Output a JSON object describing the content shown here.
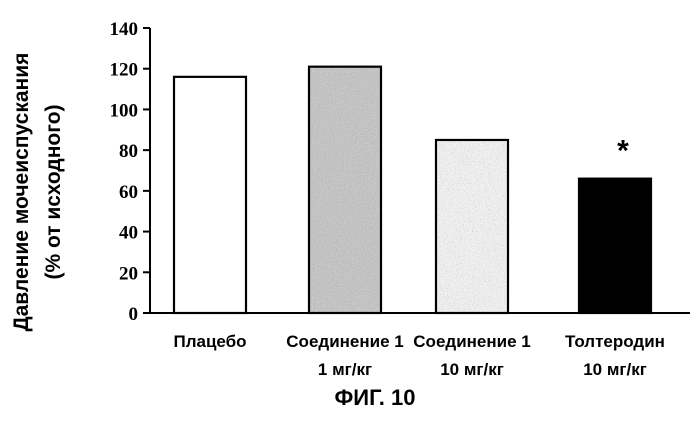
{
  "chart_data": {
    "type": "bar",
    "ylabel_line1": "Давление мочеиспускания",
    "ylabel_line2": "(% от исходного)",
    "categories": [
      [
        "Плацебо",
        ""
      ],
      [
        "Соединение 1",
        "1 мг/кг"
      ],
      [
        "Соединение 1",
        "10 мг/кг"
      ],
      [
        "Толтеродин",
        "10 мг/кг"
      ]
    ],
    "values": [
      116,
      121,
      85,
      66
    ],
    "bar_styles": [
      "white",
      "gray-speckle",
      "light-speckle",
      "black"
    ],
    "annotations": [
      {
        "category_index": 3,
        "text": "*"
      }
    ],
    "ylim": [
      0,
      140
    ],
    "yticks": [
      0,
      20,
      40,
      60,
      80,
      100,
      120,
      140
    ],
    "grid": false,
    "legend": "none"
  },
  "figure_label": "ФИГ. 10"
}
